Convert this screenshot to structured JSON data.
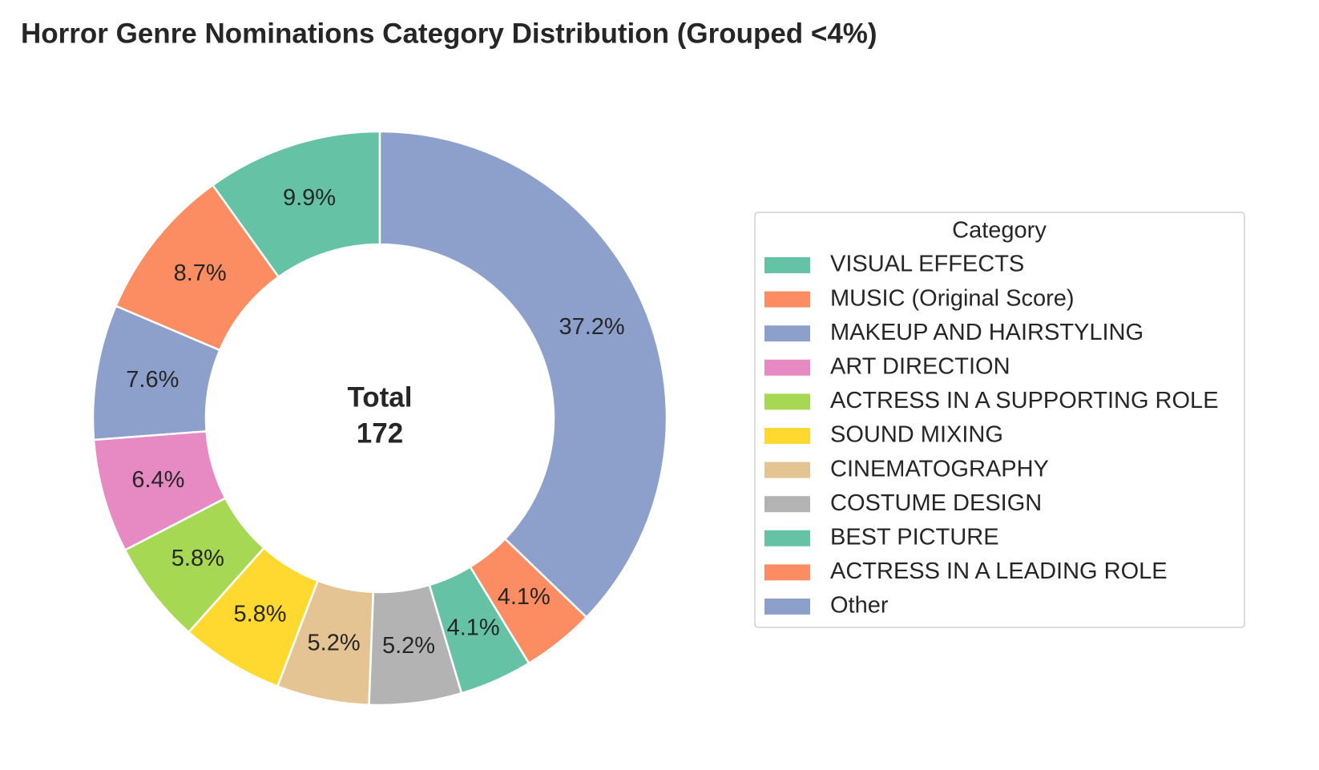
{
  "chart_data": {
    "type": "donut",
    "title": "Horror Genre Nominations Category Distribution (Grouped <4%)",
    "categories": [
      "VISUAL EFFECTS",
      "MUSIC (Original Score)",
      "MAKEUP AND HAIRSTYLING",
      "ART DIRECTION",
      "ACTRESS IN A SUPPORTING ROLE",
      "SOUND MIXING",
      "CINEMATOGRAPHY",
      "COSTUME DESIGN",
      "BEST PICTURE",
      "ACTRESS IN A LEADING ROLE",
      "Other"
    ],
    "values": [
      9.9,
      8.7,
      7.6,
      6.4,
      5.8,
      5.8,
      5.2,
      5.2,
      4.1,
      4.1,
      37.2
    ],
    "value_labels": [
      "9.9%",
      "8.7%",
      "7.6%",
      "6.4%",
      "5.8%",
      "5.8%",
      "5.2%",
      "5.2%",
      "4.1%",
      "4.1%",
      "37.2%"
    ],
    "colors": [
      "#66c2a5",
      "#fc8d62",
      "#8da0cb",
      "#e78ac3",
      "#a6d854",
      "#ffd92f",
      "#e5c494",
      "#b3b3b3",
      "#66c2a5",
      "#fc8d62",
      "#8da0cb"
    ],
    "center_label": "Total",
    "center_value": 172,
    "legend_title": "Category",
    "legend_position": "right",
    "start_angle": 90,
    "direction": "counterclockwise"
  }
}
